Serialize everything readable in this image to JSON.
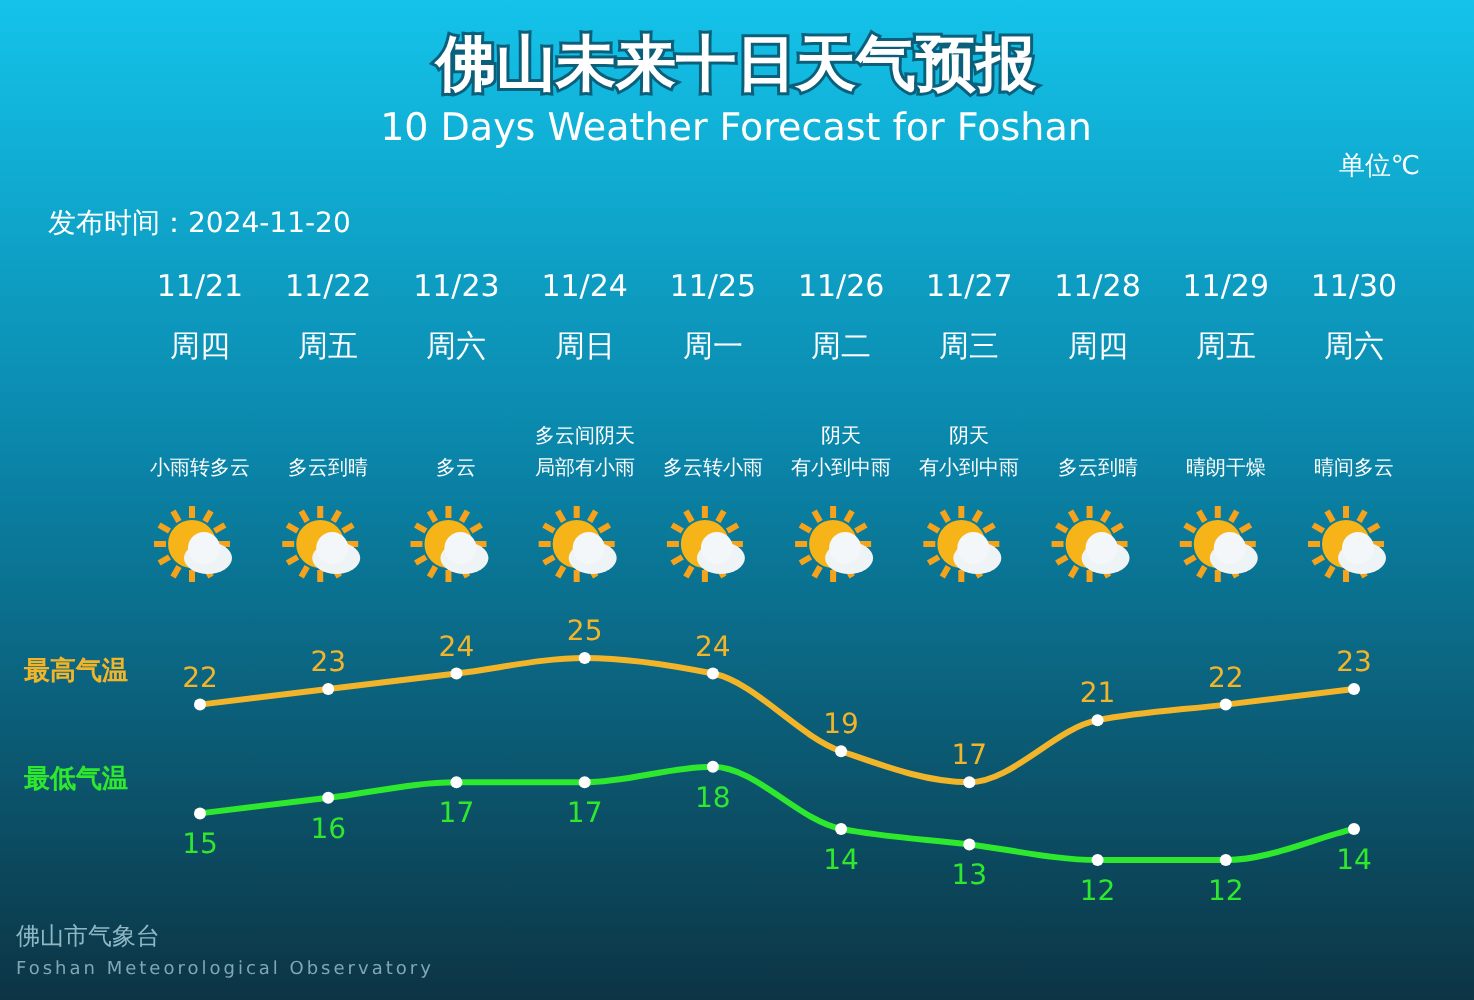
{
  "chart_data": {
    "type": "line",
    "title": "佛山未来十日天气预报",
    "subtitle": "10 Days Weather Forecast for Foshan",
    "annotations": [
      "单位℃",
      "发布时间：2024-11-20",
      "佛山市气象台",
      "Foshan Meteorological Observatory",
      "周四",
      "小雨转多云",
      "周五",
      "多云到晴",
      "周六",
      "多云",
      "周日",
      "多云间阴天局部有小雨",
      "周一",
      "多云转小雨",
      "周二",
      "阴天有小到中雨",
      "周三",
      "阴天有小到中雨",
      "周四",
      "多云到晴",
      "周五",
      "晴朗干燥",
      "周六",
      "晴间多云"
    ],
    "categories": [
      "11/21",
      "11/22",
      "11/23",
      "11/24",
      "11/25",
      "11/26",
      "11/27",
      "11/28",
      "11/29",
      "11/30"
    ],
    "series": [
      {
        "name": "最高气温",
        "color": "#f2b52a",
        "values": [
          22,
          23,
          24,
          25,
          24,
          19,
          17,
          21,
          22,
          23
        ]
      },
      {
        "name": "最低气温",
        "color": "#2ee82e",
        "values": [
          15,
          16,
          17,
          17,
          18,
          14,
          13,
          12,
          12,
          14
        ]
      }
    ],
    "data_labels": true,
    "marker": "circle"
  }
}
